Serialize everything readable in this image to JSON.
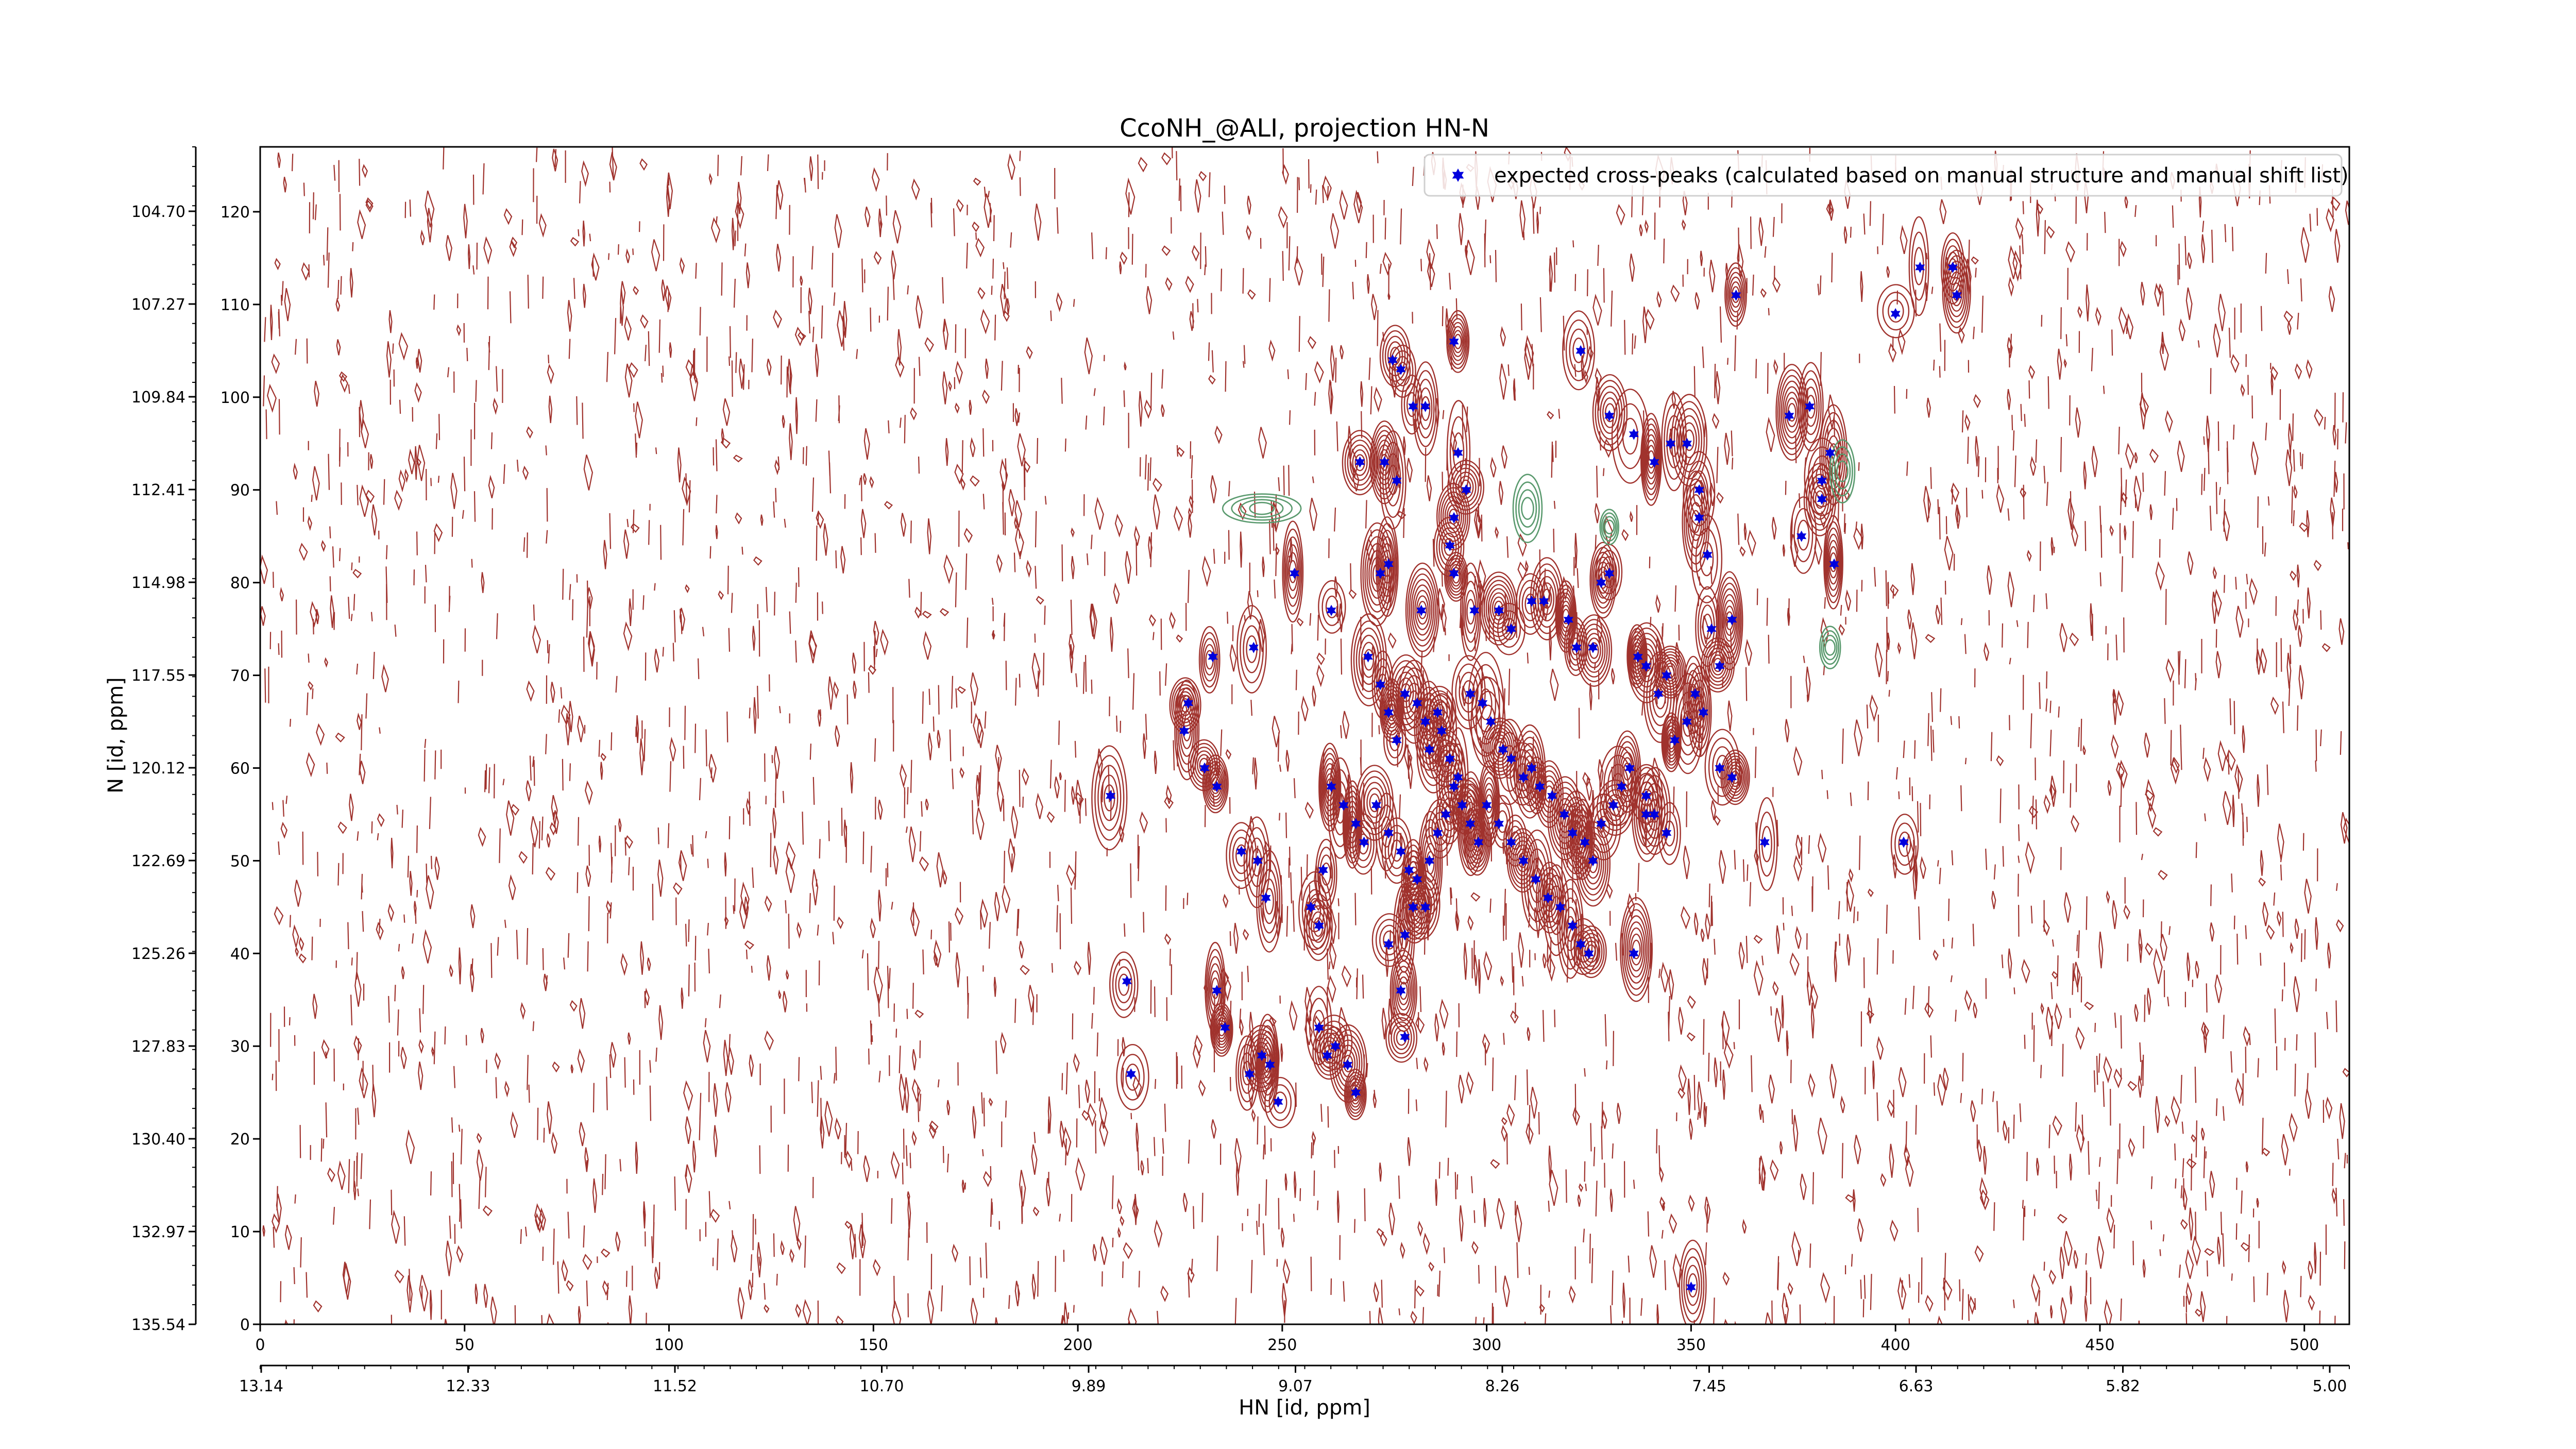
{
  "chart_data": {
    "type": "scatter",
    "title": "CcoNH_@ALI, projection HN-N",
    "xlabel": "HN [id, ppm]",
    "ylabel": "N [id, ppm]",
    "x_index_ticks": [
      "0",
      "50",
      "100",
      "150",
      "200",
      "250",
      "300",
      "350",
      "400",
      "450",
      "500"
    ],
    "x_ppm_ticks": [
      "13.14",
      "12.33",
      "11.52",
      "10.70",
      "9.89",
      "9.07",
      "8.26",
      "7.45",
      "6.63",
      "5.82",
      "5.00"
    ],
    "y_index_ticks": [
      "0",
      "10",
      "20",
      "30",
      "40",
      "50",
      "60",
      "70",
      "80",
      "90",
      "100",
      "110",
      "120"
    ],
    "y_ppm_ticks": [
      "135.54",
      "132.97",
      "130.40",
      "127.83",
      "125.26",
      "122.69",
      "120.12",
      "117.55",
      "114.98",
      "112.41",
      "109.84",
      "107.27",
      "104.70"
    ],
    "xlim": [
      0,
      511
    ],
    "ylim": [
      0,
      127
    ],
    "grid": false,
    "legend_position": "top-right",
    "contour_colors": {
      "positive": "#a0322d",
      "negative": "#5a9a6e"
    },
    "series": [
      {
        "name": "expected cross-peaks (calculated based on manual structure and manual shift list)",
        "color": "#0000dd",
        "marker": "star",
        "points": [
          [
            414,
            114
          ],
          [
            406,
            114
          ],
          [
            415,
            111
          ],
          [
            400,
            109
          ],
          [
            361,
            111
          ],
          [
            345,
            95
          ],
          [
            374,
            98
          ],
          [
            379,
            99
          ],
          [
            384,
            94
          ],
          [
            382,
            91
          ],
          [
            382,
            89
          ],
          [
            377,
            85
          ],
          [
            385,
            82
          ],
          [
            292,
            106
          ],
          [
            323,
            105
          ],
          [
            277,
            104
          ],
          [
            279,
            103
          ],
          [
            282,
            99
          ],
          [
            285,
            99
          ],
          [
            275,
            93
          ],
          [
            278,
            91
          ],
          [
            293,
            94
          ],
          [
            295,
            90
          ],
          [
            330,
            98
          ],
          [
            336,
            96
          ],
          [
            341,
            93
          ],
          [
            349,
            95
          ],
          [
            352,
            90
          ],
          [
            352,
            87
          ],
          [
            354,
            83
          ],
          [
            291,
            84
          ],
          [
            292,
            87
          ],
          [
            292,
            81
          ],
          [
            269,
            93
          ],
          [
            330,
            81
          ],
          [
            328,
            80
          ],
          [
            253,
            81
          ],
          [
            274,
            81
          ],
          [
            276,
            82
          ],
          [
            262,
            77
          ],
          [
            284,
            77
          ],
          [
            297,
            77
          ],
          [
            303,
            77
          ],
          [
            306,
            75
          ],
          [
            311,
            78
          ],
          [
            314,
            78
          ],
          [
            320,
            76
          ],
          [
            322,
            73
          ],
          [
            326,
            73
          ],
          [
            337,
            72
          ],
          [
            339,
            71
          ],
          [
            344,
            70
          ],
          [
            342,
            68
          ],
          [
            355,
            75
          ],
          [
            360,
            76
          ],
          [
            357,
            71
          ],
          [
            243,
            73
          ],
          [
            233,
            72
          ],
          [
            227,
            67
          ],
          [
            226,
            64
          ],
          [
            231,
            60
          ],
          [
            234,
            58
          ],
          [
            271,
            72
          ],
          [
            274,
            69
          ],
          [
            276,
            66
          ],
          [
            278,
            63
          ],
          [
            280,
            68
          ],
          [
            283,
            67
          ],
          [
            285,
            65
          ],
          [
            286,
            62
          ],
          [
            288,
            66
          ],
          [
            289,
            64
          ],
          [
            291,
            61
          ],
          [
            293,
            59
          ],
          [
            296,
            68
          ],
          [
            299,
            67
          ],
          [
            301,
            65
          ],
          [
            304,
            62
          ],
          [
            306,
            61
          ],
          [
            309,
            59
          ],
          [
            311,
            60
          ],
          [
            313,
            58
          ],
          [
            316,
            57
          ],
          [
            319,
            55
          ],
          [
            321,
            53
          ],
          [
            324,
            52
          ],
          [
            326,
            50
          ],
          [
            328,
            54
          ],
          [
            331,
            56
          ],
          [
            333,
            58
          ],
          [
            335,
            60
          ],
          [
            339,
            57
          ],
          [
            341,
            55
          ],
          [
            344,
            53
          ],
          [
            346,
            63
          ],
          [
            349,
            65
          ],
          [
            351,
            68
          ],
          [
            353,
            66
          ],
          [
            357,
            60
          ],
          [
            360,
            59
          ],
          [
            262,
            58
          ],
          [
            265,
            56
          ],
          [
            268,
            54
          ],
          [
            270,
            52
          ],
          [
            273,
            56
          ],
          [
            276,
            53
          ],
          [
            279,
            51
          ],
          [
            281,
            49
          ],
          [
            283,
            48
          ],
          [
            286,
            50
          ],
          [
            288,
            53
          ],
          [
            290,
            55
          ],
          [
            292,
            58
          ],
          [
            294,
            56
          ],
          [
            296,
            54
          ],
          [
            298,
            52
          ],
          [
            300,
            56
          ],
          [
            303,
            54
          ],
          [
            306,
            52
          ],
          [
            309,
            50
          ],
          [
            312,
            48
          ],
          [
            315,
            46
          ],
          [
            318,
            45
          ],
          [
            321,
            43
          ],
          [
            323,
            41
          ],
          [
            325,
            40
          ],
          [
            336,
            40
          ],
          [
            339,
            55
          ],
          [
            368,
            52
          ],
          [
            402,
            52
          ],
          [
            208,
            57
          ],
          [
            212,
            37
          ],
          [
            213,
            27
          ],
          [
            240,
            51
          ],
          [
            244,
            50
          ],
          [
            246,
            46
          ],
          [
            234,
            36
          ],
          [
            236,
            32
          ],
          [
            245,
            29
          ],
          [
            247,
            28
          ],
          [
            249,
            24
          ],
          [
            242,
            27
          ],
          [
            259,
            32
          ],
          [
            261,
            29
          ],
          [
            263,
            30
          ],
          [
            266,
            28
          ],
          [
            268,
            25
          ],
          [
            276,
            41
          ],
          [
            279,
            36
          ],
          [
            280,
            42
          ],
          [
            257,
            45
          ],
          [
            259,
            43
          ],
          [
            260,
            49
          ],
          [
            280,
            31
          ],
          [
            282,
            45
          ],
          [
            285,
            45
          ],
          [
            350,
            4
          ]
        ]
      }
    ]
  }
}
